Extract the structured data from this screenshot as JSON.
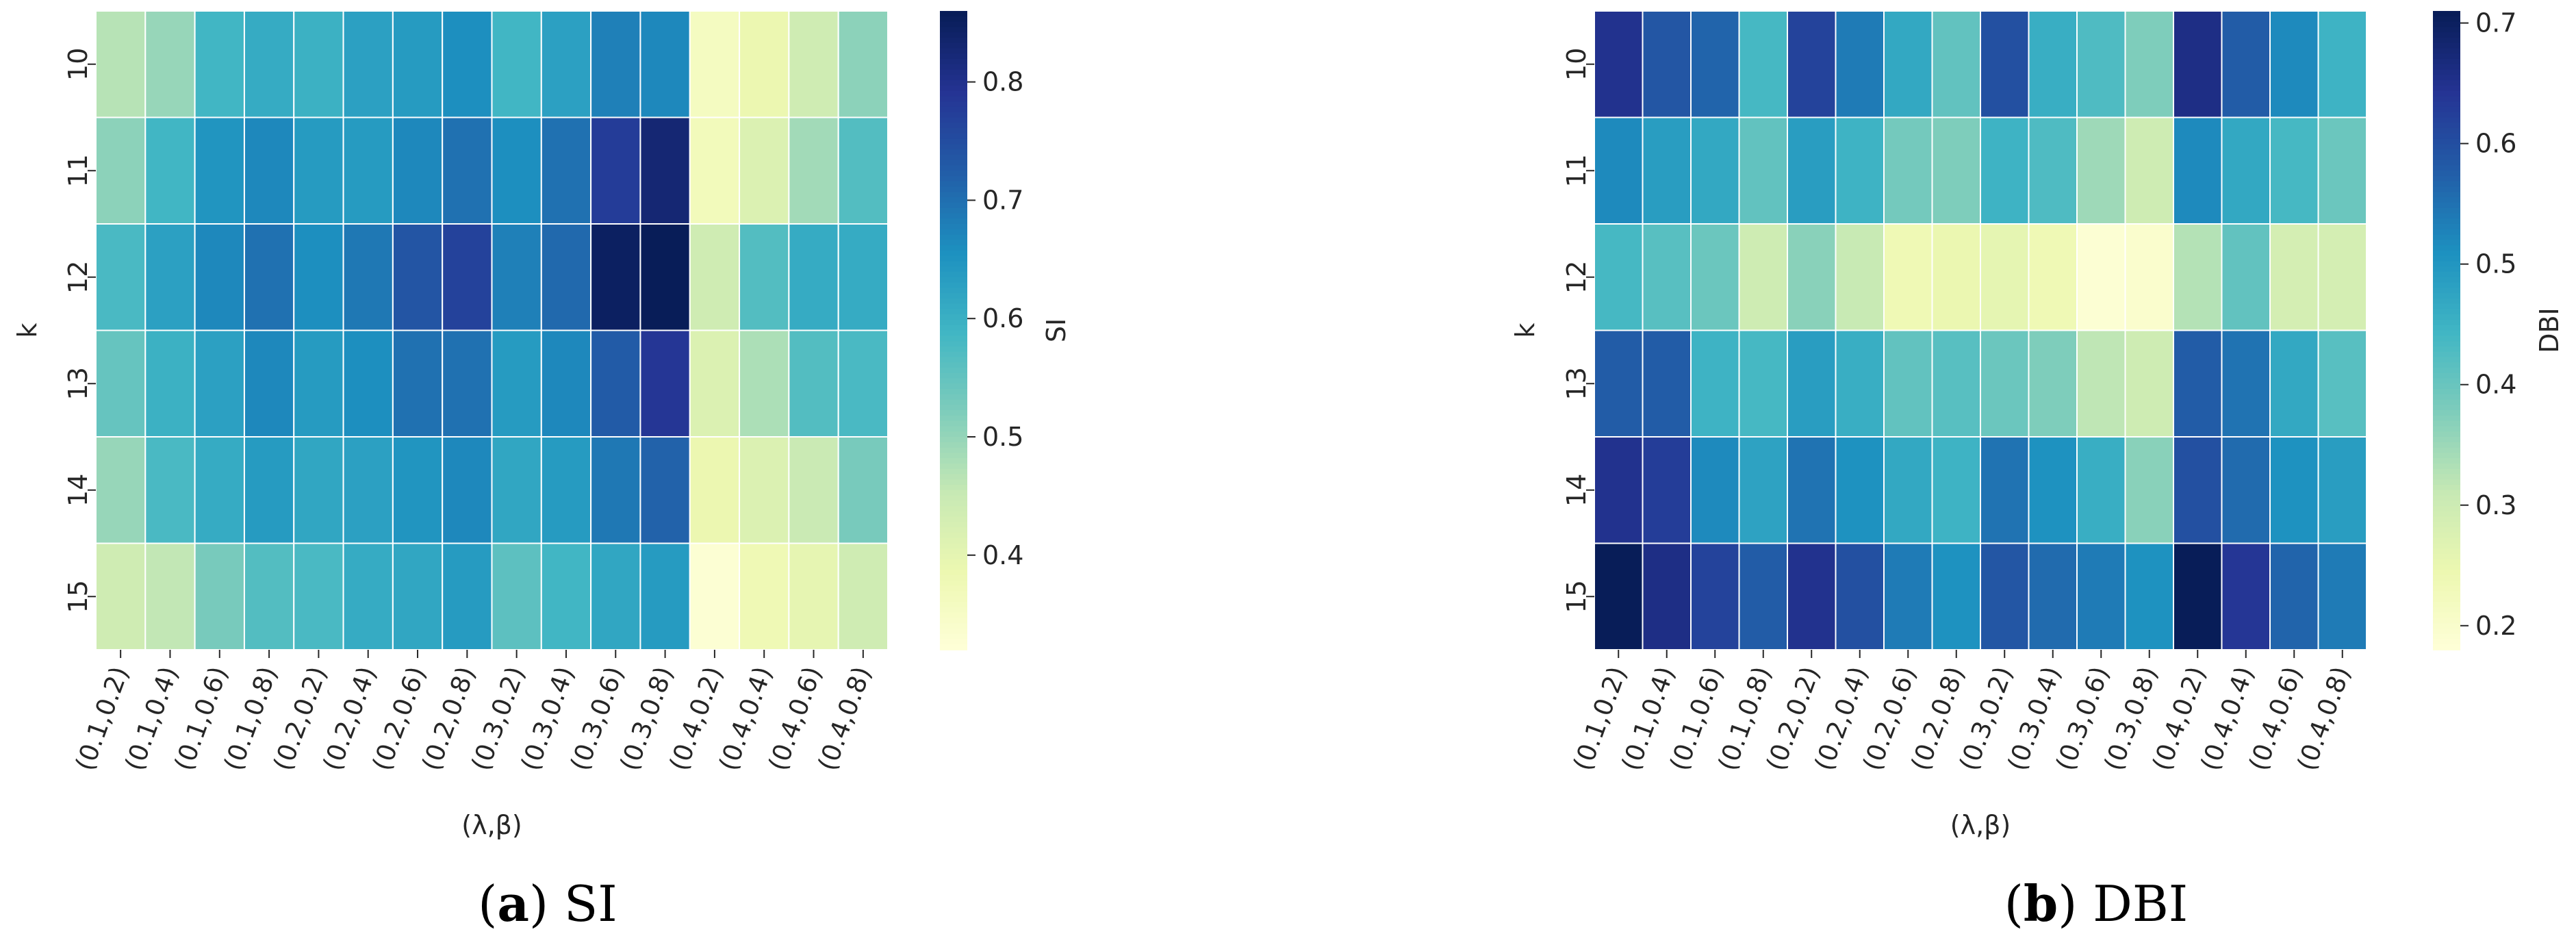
{
  "chart_data": [
    {
      "type": "heatmap",
      "panel": "a",
      "caption_label": "(a)",
      "caption_label_letter": "a",
      "caption_text": "SI",
      "xlabel": "(λ,β)",
      "ylabel": "k",
      "x_categories": [
        "(0.1,0.2)",
        "(0.1,0.4)",
        "(0.1,0.6)",
        "(0.1,0.8)",
        "(0.2,0.2)",
        "(0.2,0.4)",
        "(0.2,0.6)",
        "(0.2,0.8)",
        "(0.3,0.2)",
        "(0.3,0.4)",
        "(0.3,0.6)",
        "(0.3,0.8)",
        "(0.4,0.2)",
        "(0.4,0.4)",
        "(0.4,0.6)",
        "(0.4,0.8)"
      ],
      "y_categories": [
        "10",
        "11",
        "12",
        "13",
        "14",
        "15"
      ],
      "values": [
        [
          0.47,
          0.5,
          0.59,
          0.61,
          0.6,
          0.63,
          0.64,
          0.66,
          0.59,
          0.63,
          0.68,
          0.67,
          0.36,
          0.39,
          0.44,
          0.51
        ],
        [
          0.51,
          0.59,
          0.65,
          0.67,
          0.64,
          0.64,
          0.67,
          0.7,
          0.66,
          0.7,
          0.78,
          0.83,
          0.37,
          0.42,
          0.49,
          0.57
        ],
        [
          0.58,
          0.63,
          0.67,
          0.7,
          0.66,
          0.69,
          0.74,
          0.77,
          0.68,
          0.71,
          0.85,
          0.86,
          0.44,
          0.57,
          0.61,
          0.61
        ],
        [
          0.55,
          0.6,
          0.63,
          0.67,
          0.64,
          0.66,
          0.7,
          0.7,
          0.64,
          0.67,
          0.73,
          0.79,
          0.42,
          0.48,
          0.57,
          0.58
        ],
        [
          0.5,
          0.58,
          0.61,
          0.64,
          0.62,
          0.63,
          0.65,
          0.67,
          0.62,
          0.64,
          0.69,
          0.72,
          0.39,
          0.42,
          0.45,
          0.53
        ],
        [
          0.44,
          0.46,
          0.53,
          0.57,
          0.58,
          0.61,
          0.62,
          0.64,
          0.56,
          0.59,
          0.62,
          0.64,
          0.33,
          0.38,
          0.4,
          0.44
        ]
      ],
      "vmin": 0.32,
      "vmax": 0.86,
      "colorbar_label": "SI",
      "colorbar_ticks": [
        0.4,
        0.5,
        0.6,
        0.7,
        0.8
      ],
      "colorbar_tick_labels": [
        "0.4",
        "0.5",
        "0.6",
        "0.7",
        "0.8"
      ],
      "colormap": "YlGnBu"
    },
    {
      "type": "heatmap",
      "panel": "b",
      "caption_label": "(b)",
      "caption_label_letter": "b",
      "caption_text": "DBI",
      "xlabel": "(λ,β)",
      "ylabel": "k",
      "x_categories": [
        "(0.1,0.2)",
        "(0.1,0.4)",
        "(0.1,0.6)",
        "(0.1,0.8)",
        "(0.2,0.2)",
        "(0.2,0.4)",
        "(0.2,0.6)",
        "(0.2,0.8)",
        "(0.3,0.2)",
        "(0.3,0.4)",
        "(0.3,0.6)",
        "(0.3,0.8)",
        "(0.4,0.2)",
        "(0.4,0.4)",
        "(0.4,0.6)",
        "(0.4,0.8)"
      ],
      "y_categories": [
        "10",
        "11",
        "12",
        "13",
        "14",
        "15"
      ],
      "values": [
        [
          0.65,
          0.59,
          0.57,
          0.44,
          0.62,
          0.54,
          0.47,
          0.41,
          0.6,
          0.46,
          0.43,
          0.38,
          0.66,
          0.58,
          0.52,
          0.45
        ],
        [
          0.52,
          0.49,
          0.47,
          0.41,
          0.49,
          0.45,
          0.39,
          0.38,
          0.45,
          0.43,
          0.35,
          0.3,
          0.52,
          0.47,
          0.44,
          0.4
        ],
        [
          0.44,
          0.42,
          0.4,
          0.3,
          0.37,
          0.31,
          0.24,
          0.25,
          0.26,
          0.24,
          0.19,
          0.2,
          0.33,
          0.41,
          0.29,
          0.29
        ],
        [
          0.58,
          0.58,
          0.45,
          0.44,
          0.49,
          0.46,
          0.41,
          0.42,
          0.4,
          0.38,
          0.32,
          0.3,
          0.58,
          0.55,
          0.47,
          0.42
        ],
        [
          0.65,
          0.63,
          0.52,
          0.48,
          0.55,
          0.51,
          0.47,
          0.45,
          0.55,
          0.51,
          0.46,
          0.37,
          0.6,
          0.56,
          0.51,
          0.49
        ],
        [
          0.71,
          0.66,
          0.62,
          0.58,
          0.65,
          0.6,
          0.54,
          0.51,
          0.59,
          0.56,
          0.54,
          0.51,
          0.71,
          0.64,
          0.57,
          0.54
        ]
      ],
      "vmin": 0.18,
      "vmax": 0.71,
      "colorbar_label": "DBI",
      "colorbar_ticks": [
        0.2,
        0.3,
        0.4,
        0.5,
        0.6,
        0.7
      ],
      "colorbar_tick_labels": [
        "0.2",
        "0.3",
        "0.4",
        "0.5",
        "0.6",
        "0.7"
      ],
      "colormap": "YlGnBu"
    }
  ]
}
